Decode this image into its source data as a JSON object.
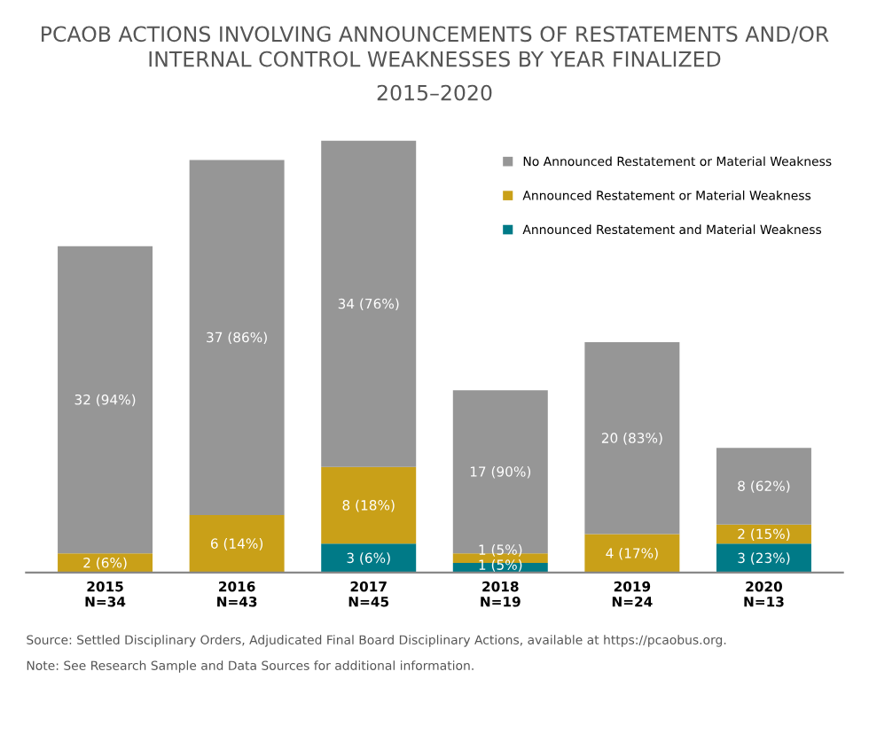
{
  "chart_data": {
    "type": "bar",
    "stacked": true,
    "title": "PCAOB ACTIONS INVOLVING ANNOUNCEMENTS OF RESTATEMENTS AND/OR\nINTERNAL CONTROL WEAKNESSES BY YEAR FINALIZED",
    "subtitle": "2015–2020",
    "categories": [
      "2015\nN=34",
      "2016\nN=43",
      "2017\nN=45",
      "2018\nN=19",
      "2019\nN=24",
      "2020\nN=13"
    ],
    "series": [
      {
        "name": "Announced Restatement and Material Weakness",
        "color": "#007a87",
        "values": [
          0,
          0,
          3,
          1,
          0,
          3
        ],
        "value_labels": [
          null,
          null,
          "3 (6%)",
          "1 (5%)",
          null,
          "3 (23%)"
        ]
      },
      {
        "name": "Announced Restatement or Material Weakness",
        "color": "#c9a018",
        "values": [
          2,
          6,
          8,
          1,
          4,
          2
        ],
        "value_labels": [
          "2 (6%)",
          "6 (14%)",
          "8 (18%)",
          "1 (5%)",
          "4 (17%)",
          "2 (15%)"
        ]
      },
      {
        "name": "No Announced Restatement or Material Weakness",
        "color": "#969696",
        "values": [
          32,
          37,
          34,
          17,
          20,
          8
        ],
        "value_labels": [
          "32 (94%)",
          "37 (86%)",
          "34 (76%)",
          "17 (90%)",
          "20 (83%)",
          "8 (62%)"
        ]
      }
    ],
    "legend": "top right",
    "annotations": [
      "Source: Settled Disciplinary Orders, Adjudicated Final Board Disciplinary Actions, available at https://pcaobus.org.",
      "Note: See Research Sample and Data Sources for additional information."
    ]
  }
}
